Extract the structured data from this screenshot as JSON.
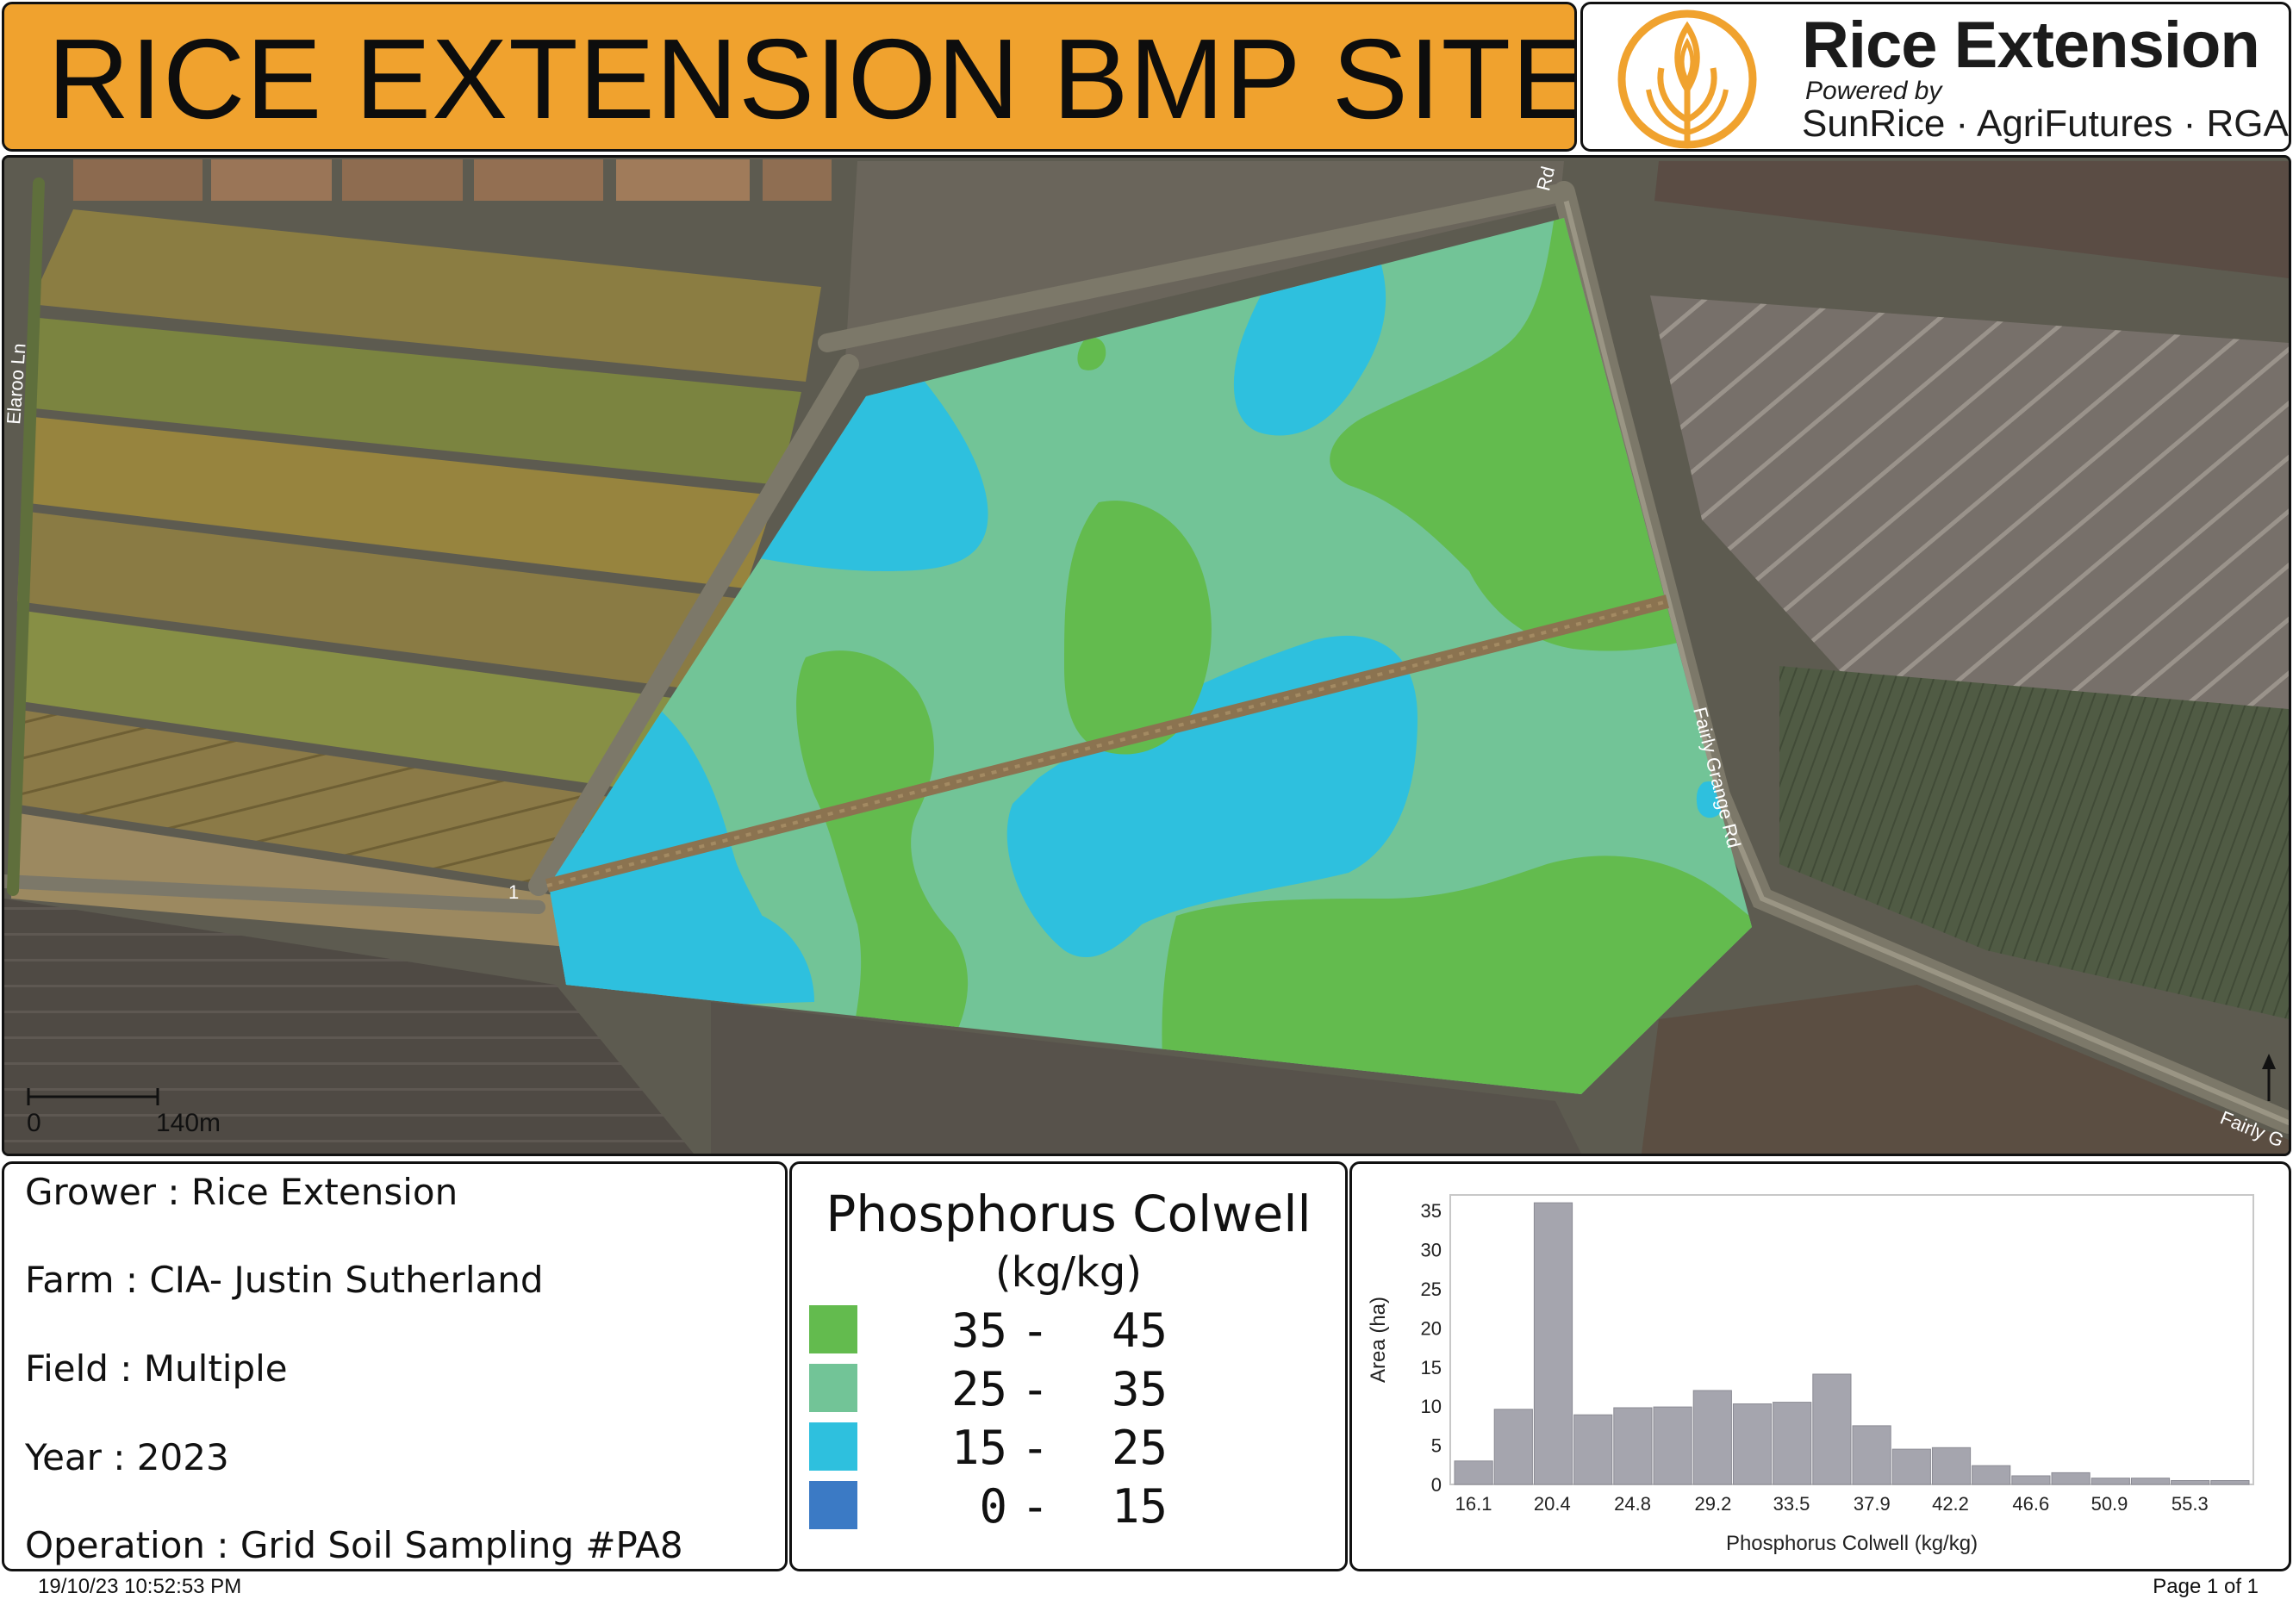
{
  "header": {
    "title": "RICE EXTENSION BMP SITE",
    "logo": {
      "icon": "wheat-sheaf-icon",
      "brand": "Rice Extension",
      "powered_by": "Powered by",
      "partners": "SunRice · AgriFutures · RGA",
      "accent_color": "#f0a22e"
    }
  },
  "map": {
    "road_labels": [
      "Elaroo Ln",
      "Rd",
      "Fairly Grange Rd",
      "Fairly G"
    ],
    "point_marker": "1",
    "scale_bar": {
      "start": "0",
      "end": "140m"
    },
    "north_arrow_icon": "north-arrow-icon",
    "zone_colors": {
      "35_45": "#63bb4e",
      "25_35": "#72c497",
      "15_25": "#2ec0de",
      "0_15": "#3b7ac5"
    }
  },
  "info": {
    "grower": "Grower : Rice Extension",
    "farm": "Farm : CIA- Justin Sutherland",
    "field": "Field : Multiple",
    "year": "Year : 2023",
    "operation": "Operation : Grid Soil Sampling #PA8"
  },
  "legend": {
    "title": "Phosphorus Colwell",
    "units": "(kg/kg)",
    "classes": [
      {
        "min": "35",
        "max": "45",
        "color": "#63bb4e"
      },
      {
        "min": "25",
        "max": "35",
        "color": "#72c497"
      },
      {
        "min": "15",
        "max": "25",
        "color": "#2ec0de"
      },
      {
        "min": "0",
        "max": "15",
        "color": "#3b7ac5"
      }
    ]
  },
  "chart_data": {
    "type": "bar",
    "xlabel": "Phosphorus Colwell (kg/kg)",
    "ylabel": "Area (ha)",
    "ylim": [
      0,
      37
    ],
    "yticks": [
      0,
      5,
      10,
      15,
      20,
      25,
      30,
      35
    ],
    "xtick_labels": [
      "16.1",
      "20.4",
      "24.8",
      "29.2",
      "33.5",
      "37.9",
      "42.2",
      "46.6",
      "50.9",
      "55.3"
    ],
    "bar_color": "#a5a5ae",
    "bins": [
      {
        "x": 16.1,
        "value": 3.0
      },
      {
        "x": 18.3,
        "value": 9.6
      },
      {
        "x": 20.4,
        "value": 36.0
      },
      {
        "x": 22.6,
        "value": 8.9
      },
      {
        "x": 24.8,
        "value": 9.8
      },
      {
        "x": 27.0,
        "value": 9.9
      },
      {
        "x": 29.2,
        "value": 12.0
      },
      {
        "x": 31.3,
        "value": 10.3
      },
      {
        "x": 33.5,
        "value": 10.5
      },
      {
        "x": 35.7,
        "value": 14.1
      },
      {
        "x": 37.9,
        "value": 7.5
      },
      {
        "x": 40.0,
        "value": 4.5
      },
      {
        "x": 42.2,
        "value": 4.7
      },
      {
        "x": 44.4,
        "value": 2.4
      },
      {
        "x": 46.6,
        "value": 1.1
      },
      {
        "x": 48.7,
        "value": 1.5
      },
      {
        "x": 50.9,
        "value": 0.8
      },
      {
        "x": 53.1,
        "value": 0.8
      },
      {
        "x": 55.3,
        "value": 0.5
      },
      {
        "x": 57.5,
        "value": 0.5
      }
    ]
  },
  "footer": {
    "timestamp": "19/10/23 10:52:53 PM",
    "page": "Page 1 of 1"
  }
}
